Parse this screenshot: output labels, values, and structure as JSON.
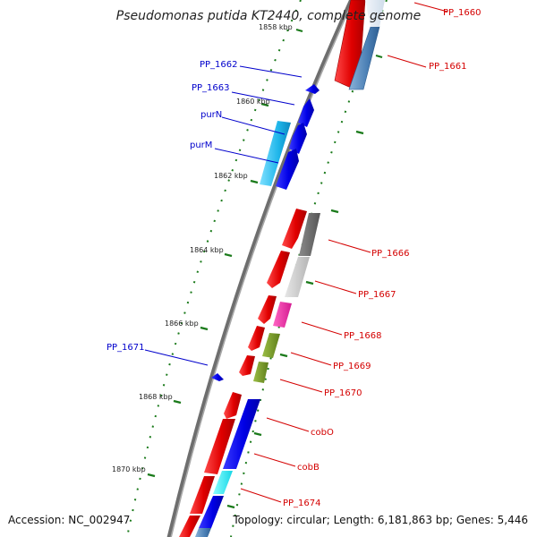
{
  "title": "Pseudomonas putida KT2440, complete genome",
  "footer": {
    "accession": "Accession: NC_002947",
    "summary": "Topology: circular; Length: 6,181,863 bp; Genes: 5,446"
  },
  "colors": {
    "backbone": "#8c8c8c",
    "tick_line": "#1a7a1a",
    "label_blue": "#0000cc",
    "label_red": "#d40000"
  },
  "ruler": [
    "1858 kbp",
    "1860 kbp",
    "1862 kbp",
    "1864 kbp",
    "1866 kbp",
    "1868 kbp",
    "1870 kbp"
  ],
  "labels_left": [
    "PP_1662",
    "PP_1663",
    "purN",
    "purM",
    "PP_1671"
  ],
  "labels_right": [
    "PP_1660",
    "PP_1661",
    "PP_1666",
    "PP_1667",
    "PP_1668",
    "PP_1669",
    "PP_1670",
    "cobO",
    "cobB",
    "PP_1674"
  ]
}
